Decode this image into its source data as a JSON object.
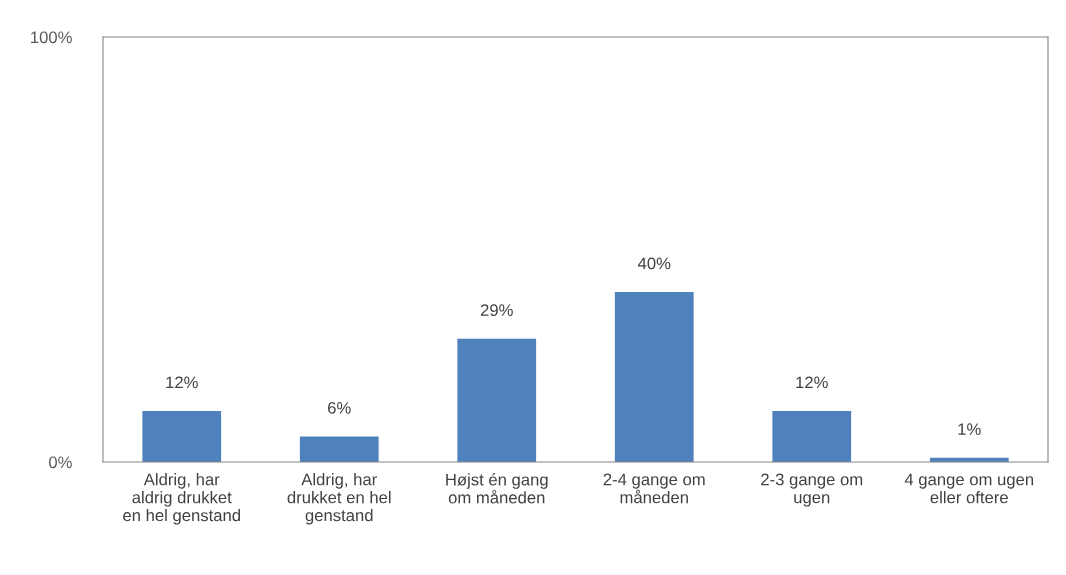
{
  "chart_data": {
    "type": "bar",
    "categories": [
      "Aldrig, har aldrig drukket en hel genstand",
      "Aldrig, har drukket en hel genstand",
      "Højst én gang om måneden",
      "2-4 gange om måneden",
      "2-3 gange om ugen",
      "4 gange om ugen eller oftere"
    ],
    "values": [
      12,
      6,
      29,
      40,
      12,
      1
    ],
    "value_labels": [
      "12%",
      "6%",
      "29%",
      "40%",
      "12%",
      "1%"
    ],
    "color": "#4f81bd",
    "ylim": [
      0,
      100
    ],
    "yticks": [
      {
        "value": 0,
        "label": "0%"
      },
      {
        "value": 100,
        "label": "100%"
      }
    ],
    "grid": false,
    "legend": false
  }
}
